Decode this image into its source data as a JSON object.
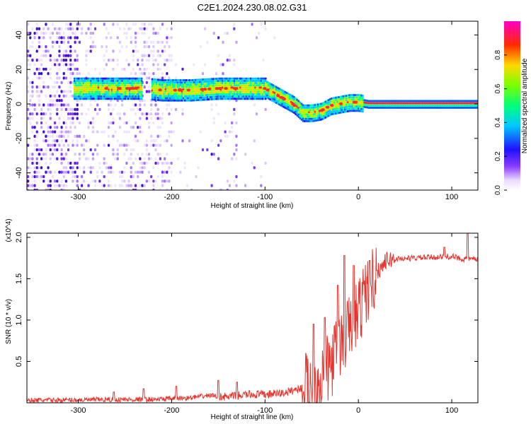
{
  "title": "C2E1.2024.230.08.02.G31",
  "colors": {
    "snr_line": "#e8342d",
    "spec_core": "#ff2a2a",
    "spec_low": "#7a2cff"
  },
  "chart_data": [
    {
      "type": "heatmap",
      "xlabel": "Height of straight line (km)",
      "ylabel": "Frequency (Hz)",
      "xlim": [
        -355,
        128
      ],
      "ylim": [
        -50,
        48
      ],
      "xticks": [
        -300,
        -200,
        -100,
        0,
        100
      ],
      "yticks": [
        -40,
        -20,
        0,
        20,
        40
      ],
      "colorbar": {
        "label": "Normalized spectral amplitude",
        "range": [
          0,
          1
        ],
        "ticks": [
          "0.0",
          "0.2",
          "0.4",
          "0.6",
          "0.8"
        ],
        "colormap": "rainbow (white-violet-blue-cyan-green-yellow-red-magenta)"
      },
      "ridge": {
        "description": "dominant frequency trace",
        "points": [
          [
            -305,
            9
          ],
          [
            -280,
            9
          ],
          [
            -250,
            9
          ],
          [
            -230,
            9
          ],
          [
            -210,
            8
          ],
          [
            -180,
            8
          ],
          [
            -150,
            9
          ],
          [
            -120,
            9
          ],
          [
            -100,
            9
          ],
          [
            -90,
            6
          ],
          [
            -80,
            3
          ],
          [
            -70,
            0
          ],
          [
            -60,
            -5
          ],
          [
            -50,
            -5
          ],
          [
            -40,
            -4
          ],
          [
            -30,
            -1
          ],
          [
            -20,
            0
          ],
          [
            -10,
            1
          ],
          [
            0,
            1
          ],
          [
            10,
            0
          ],
          [
            50,
            0
          ],
          [
            100,
            0
          ],
          [
            128,
            0
          ]
        ]
      }
    },
    {
      "type": "line",
      "xlabel": "Height of straight line (km)",
      "ylabel": "SNR (10 * v/v)",
      "ymultiplier": "(x10^4)",
      "xlim": [
        -355,
        128
      ],
      "ylim": [
        0,
        2.05
      ],
      "xticks": [
        -300,
        -200,
        -100,
        0,
        100
      ],
      "yticks": [
        "0.5",
        "1.0",
        "1.5",
        "2.0"
      ],
      "series": [
        {
          "anchors_x": [
            -355,
            -250,
            -220,
            -200,
            -180,
            -160,
            -140,
            -120,
            -100,
            -80,
            -60,
            -50,
            -40,
            -30,
            -20,
            -10,
            0,
            10,
            20,
            30,
            40,
            60,
            80,
            100,
            110,
            128
          ],
          "anchors_y": [
            0.03,
            0.04,
            0.04,
            0.05,
            0.06,
            0.09,
            0.07,
            0.1,
            0.1,
            0.12,
            0.18,
            0.25,
            0.3,
            0.45,
            0.7,
            0.9,
            1.1,
            1.38,
            1.58,
            1.72,
            1.74,
            1.75,
            1.76,
            1.77,
            1.74,
            1.73
          ],
          "spikes": [
            [
              -262,
              0.13
            ],
            [
              -230,
              0.17
            ],
            [
              -195,
              0.2
            ],
            [
              -150,
              0.27
            ],
            [
              -130,
              0.25
            ],
            [
              -48,
              0.95
            ],
            [
              -36,
              1.03
            ],
            [
              -22,
              1.42
            ],
            [
              -15,
              1.78
            ],
            [
              -5,
              1.66
            ],
            [
              12,
              1.72
            ],
            [
              20,
              1.6
            ],
            [
              92,
              1.88
            ],
            [
              117,
              2.07
            ]
          ]
        }
      ]
    }
  ]
}
